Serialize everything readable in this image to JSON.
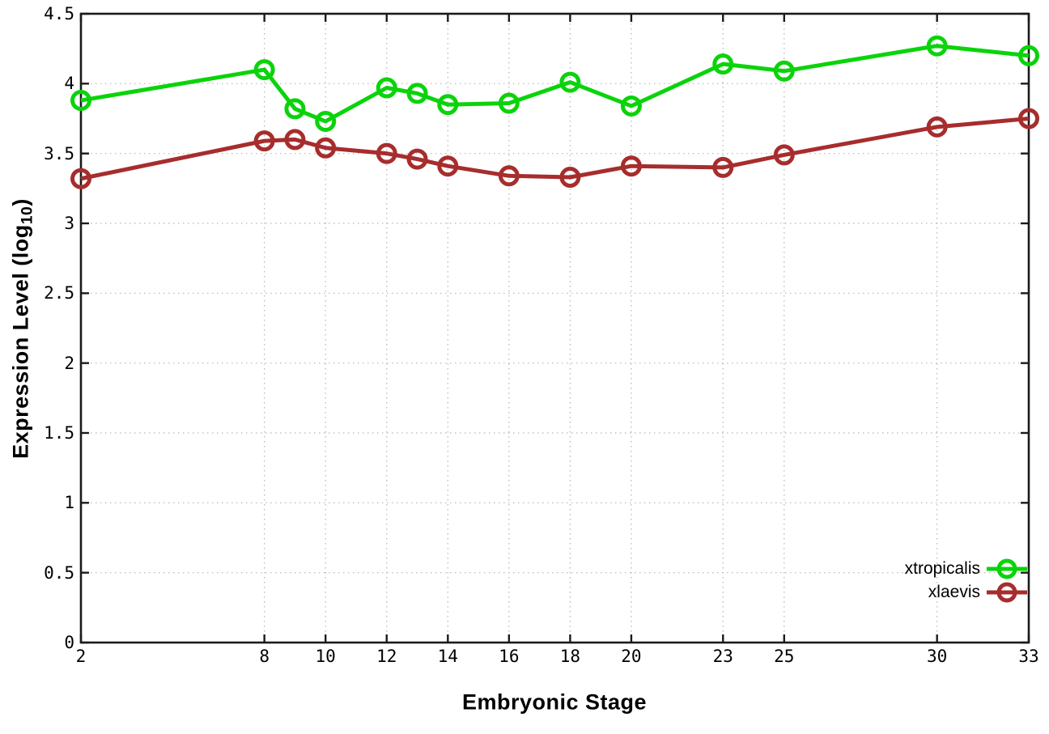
{
  "chart_data": {
    "type": "line",
    "title": "",
    "xlabel": "Embryonic Stage",
    "ylabel": {
      "prefix": "Expression Level (log",
      "sub": "10",
      "suffix": ")"
    },
    "x": [
      2,
      8,
      9,
      10,
      12,
      13,
      14,
      16,
      18,
      20,
      23,
      25,
      30,
      33
    ],
    "series": [
      {
        "name": "xtropicalis",
        "color": "#0bd30b",
        "marker": "open-circle",
        "values": [
          3.88,
          4.1,
          3.82,
          3.73,
          3.97,
          3.93,
          3.85,
          3.86,
          4.01,
          3.84,
          4.14,
          4.09,
          4.27,
          4.2
        ]
      },
      {
        "name": "xlaevis",
        "color": "#a72d2d",
        "marker": "open-circle",
        "values": [
          3.32,
          3.59,
          3.6,
          3.54,
          3.5,
          3.46,
          3.41,
          3.34,
          3.33,
          3.41,
          3.4,
          3.49,
          3.69,
          3.75
        ]
      }
    ],
    "xlim": [
      2,
      33
    ],
    "ylim": [
      0,
      4.5
    ],
    "x_ticks": [
      2,
      8,
      10,
      12,
      14,
      16,
      18,
      20,
      23,
      25,
      30,
      33
    ],
    "y_ticks": [
      0,
      0.5,
      1,
      1.5,
      2,
      2.5,
      3,
      3.5,
      4,
      4.5
    ],
    "grid": true,
    "grid_style": "dotted",
    "tick_style": "inner-mirrored",
    "legend_position": "bottom-right",
    "legend_border": false
  },
  "colors": {
    "background": "#ffffff",
    "axis": "#1b1b1b",
    "grid": "#b4b4b4",
    "text": "#000000"
  }
}
